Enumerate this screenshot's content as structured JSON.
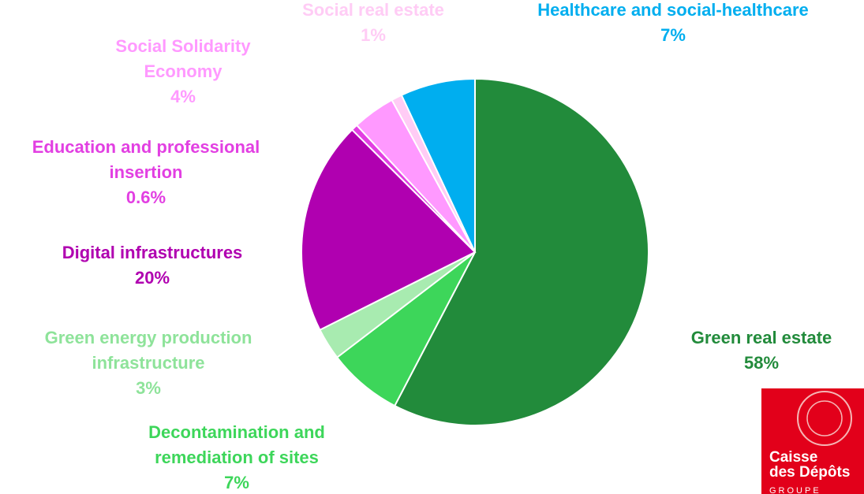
{
  "chart_data": {
    "type": "pie",
    "categories": [
      "Green real estate",
      "Decontamination and remediation of sites",
      "Green energy production infrastructure",
      "Digital infrastructures",
      "Education and professional insertion",
      "Social Solidarity Economy",
      "Social real estate",
      "Healthcare and social-healthcare"
    ],
    "values": [
      58,
      7,
      3,
      20,
      0.6,
      4,
      1,
      7
    ],
    "value_labels": [
      "58%",
      "7%",
      "3%",
      "20%",
      "0.6%",
      "4%",
      "1%",
      "7%"
    ],
    "colors": [
      "#228b3b",
      "#3dd65a",
      "#a8ebb0",
      "#b000b0",
      "#e23fe2",
      "#ff99ff",
      "#ffccf5",
      "#00aeef"
    ],
    "label_colors": [
      "#228b3b",
      "#3dd65a",
      "#8ee39a",
      "#b000b0",
      "#e23fe2",
      "#ff99ff",
      "#ffccf5",
      "#00aeef"
    ]
  },
  "logo": {
    "line1": "Caisse",
    "line2": "des Dépôts",
    "line3": "GROUPE"
  }
}
